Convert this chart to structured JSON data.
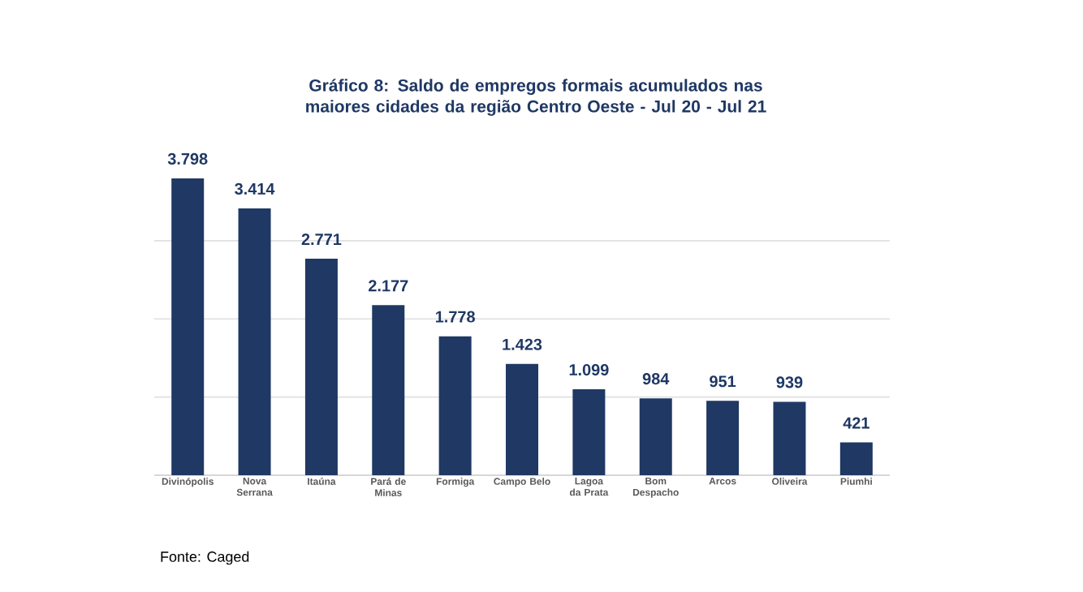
{
  "chart_data": {
    "type": "bar",
    "title": "Gráfico 8: Saldo de empregos formais acumulados nas maiores  cidades da região Centro Oeste - Jul 20 - Jul 21",
    "categories": [
      "Divinópolis",
      "Nova Serrana",
      "Itaúna",
      "Pará de Minas",
      "Formiga",
      "Campo Belo",
      "Lagoa da Prata",
      "Bom Despacho",
      "Arcos",
      "Oliveira",
      "Piumhi"
    ],
    "values": [
      3798,
      3414,
      2771,
      2177,
      1778,
      1423,
      1099,
      984,
      951,
      939,
      421
    ],
    "value_labels": [
      "3.798",
      "3.414",
      "2.771",
      "2.177",
      "1.778",
      "1.423",
      "1.099",
      "984",
      "951",
      "939",
      "421"
    ],
    "color": "#1f3864",
    "grid": "y",
    "annotations": [
      "Fonte: Caged"
    ]
  }
}
